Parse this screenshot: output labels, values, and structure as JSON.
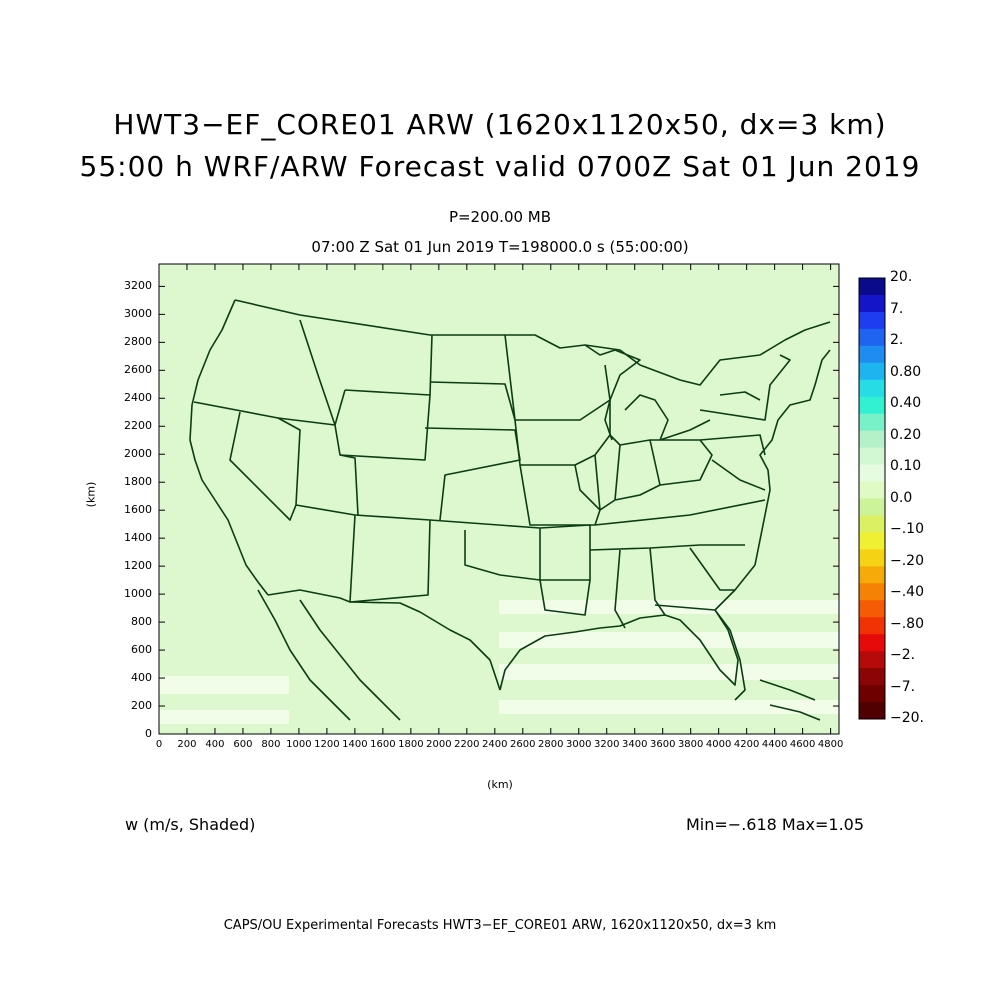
{
  "title": {
    "line1": "HWT3−EF_CORE01 ARW (1620x1120x50, dx=3 km)",
    "line2": "55:00 h WRF/ARW Forecast valid 0700Z Sat 01 Jun 2019"
  },
  "subtitle": {
    "level": "P=200.00 MB",
    "time": "07:00 Z Sat 01 Jun 2019    T=198000.0 s (55:00:00)"
  },
  "axes": {
    "xlabel": "(km)",
    "ylabel": "(km)",
    "x_ticks": [
      "0",
      "200",
      "400",
      "600",
      "800",
      "1000",
      "1200",
      "1400",
      "1600",
      "1800",
      "2000",
      "2200",
      "2400",
      "2600",
      "2800",
      "3000",
      "3200",
      "3400",
      "3600",
      "3800",
      "4000",
      "4200",
      "4400",
      "4600",
      "4800"
    ],
    "y_ticks": [
      "0",
      "200",
      "400",
      "600",
      "800",
      "1000",
      "1200",
      "1400",
      "1600",
      "1800",
      "2000",
      "2200",
      "2400",
      "2600",
      "2800",
      "3000",
      "3200"
    ],
    "x_range_km": [
      0,
      4860
    ],
    "y_range_km": [
      0,
      3360
    ]
  },
  "colorbar": {
    "labels": [
      "20.",
      "7.",
      "2.",
      "0.80",
      "0.40",
      "0.20",
      "0.10",
      "0.0",
      "−.10",
      "−.20",
      "−.40",
      "−.80",
      "−2.",
      "−7.",
      "−20."
    ],
    "colors": [
      "#0a0a8c",
      "#1414c8",
      "#1e3cf0",
      "#1e64f0",
      "#1e8cf0",
      "#1eb4f0",
      "#28dce6",
      "#32f0d2",
      "#78f0c8",
      "#b4f0c8",
      "#d2f8d2",
      "#e6fce0",
      "#e0fac4",
      "#ccf29a",
      "#dcf064",
      "#f0f032",
      "#f5d214",
      "#f5aa0a",
      "#f58205",
      "#f55a05",
      "#f03205",
      "#e60a0a",
      "#b40a0a",
      "#8c0505",
      "#6e0000",
      "#500000"
    ]
  },
  "field": {
    "label": "w (m/s, Shaded)",
    "minmax": "Min=−.618  Max=1.05"
  },
  "footer": "CAPS/OU Experimental Forecasts  HWT3−EF_CORE01 ARW, 1620x1120x50, dx=3 km",
  "map_colors": {
    "background": "#ddf7cf",
    "pale": "#f1fce9",
    "boundary": "#0b3d14"
  }
}
